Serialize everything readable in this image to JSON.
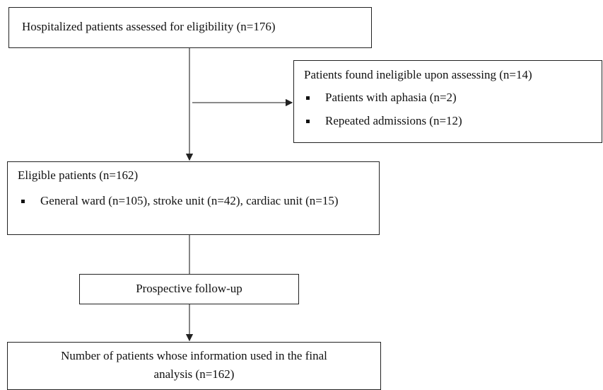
{
  "nodes": [
    {
      "label": "Hospitalized patients assessed for eligibility (n=176)"
    },
    {
      "label": "Patients found ineligible upon assessing (n=14)",
      "bullets": [
        "Patients with aphasia (n=2)",
        "Repeated admissions (n=12)"
      ]
    },
    {
      "label": "Eligible patients (n=162)",
      "bullets": [
        "General ward (n=105), stroke unit (n=42), cardiac unit (n=15)"
      ]
    },
    {
      "label": "Prospective follow-up"
    },
    {
      "label": "Number of patients whose information used in the final analysis (n=162)"
    }
  ]
}
